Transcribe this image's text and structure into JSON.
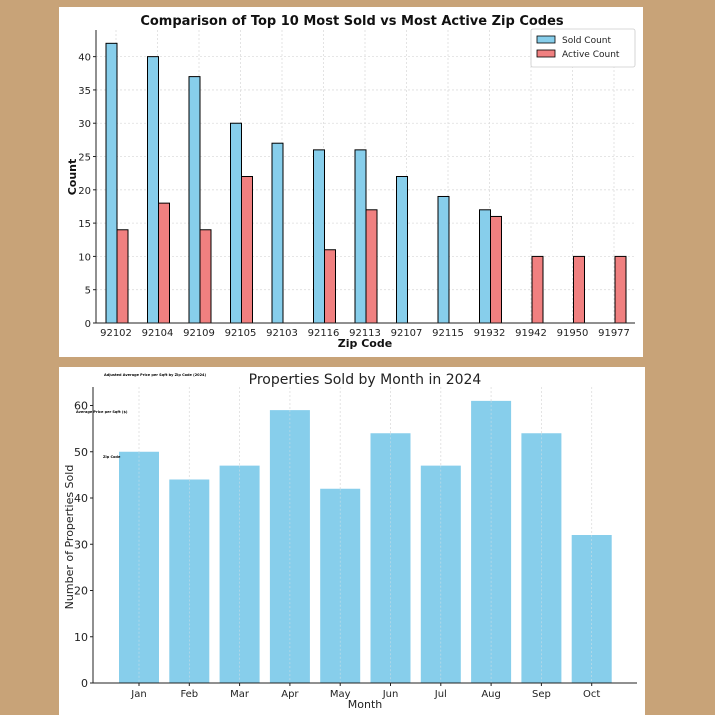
{
  "chart_data": [
    {
      "type": "bar",
      "title": "Comparison of Top 10 Most Sold vs Most Active Zip Codes",
      "xlabel": "Zip Code",
      "ylabel": "Count",
      "categories": [
        "92102",
        "92104",
        "92109",
        "92105",
        "92103",
        "92116",
        "92113",
        "92107",
        "92115",
        "91932",
        "91942",
        "91950",
        "91977"
      ],
      "series": [
        {
          "name": "Sold Count",
          "color": "#87ceeb",
          "values": [
            42,
            40,
            37,
            30,
            27,
            26,
            26,
            22,
            19,
            17,
            0,
            0,
            0
          ]
        },
        {
          "name": "Active Count",
          "color": "#f08080",
          "values": [
            14,
            18,
            14,
            22,
            0,
            11,
            17,
            0,
            0,
            16,
            10,
            10,
            10
          ]
        }
      ],
      "ylim": [
        0,
        44
      ],
      "yticks": [
        0,
        5,
        10,
        15,
        20,
        25,
        30,
        35,
        40
      ],
      "grid": true,
      "legend": "top-right"
    },
    {
      "type": "bar",
      "title": "Properties Sold by Month in 2024",
      "xlabel": "Month",
      "ylabel": "Number of Properties Sold",
      "categories": [
        "Jan",
        "Feb",
        "Mar",
        "Apr",
        "May",
        "Jun",
        "Jul",
        "Aug",
        "Sep",
        "Oct"
      ],
      "values": [
        50,
        44,
        47,
        59,
        42,
        54,
        47,
        61,
        54,
        32
      ],
      "color": "#87ceeb",
      "ylim": [
        0,
        64
      ],
      "yticks": [
        0,
        10,
        20,
        30,
        40,
        50,
        60
      ],
      "grid": true,
      "overlay_annotations": [
        "Adjusted Average Price per Sqft by Zip Code (2024)",
        "Average Price per Sqft ($)",
        "Zip Code"
      ]
    }
  ]
}
